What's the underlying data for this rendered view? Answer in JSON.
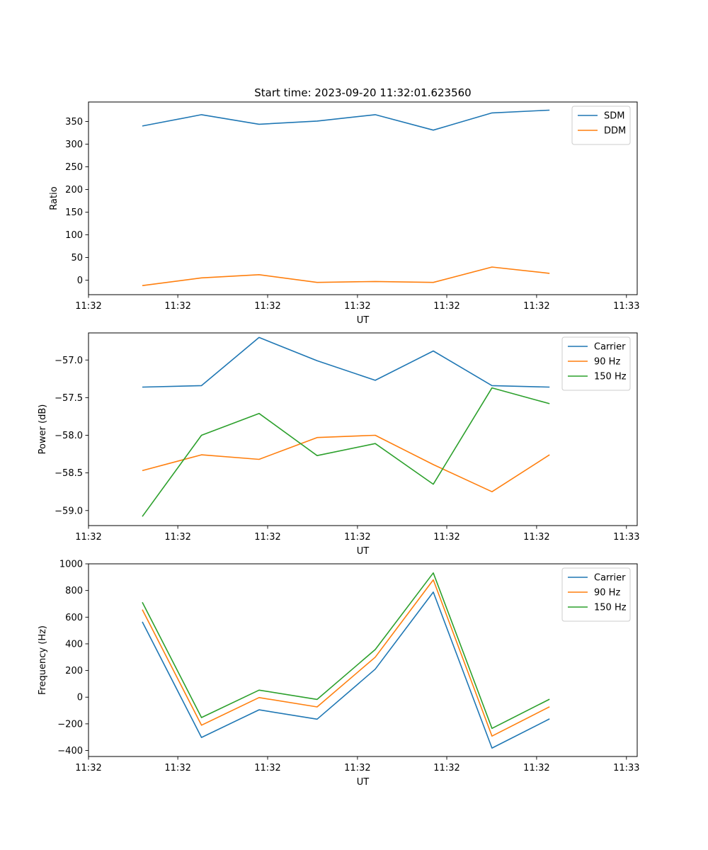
{
  "figure_title": "Start time: 2023-09-20 11:32:01.623560",
  "colors": {
    "blue": "#1f77b4",
    "orange": "#ff7f0e",
    "green": "#2ca02c"
  },
  "chart_data": [
    {
      "type": "line",
      "title": "Start time: 2023-09-20 11:32:01.623560",
      "xlabel": "UT",
      "ylabel": "Ratio",
      "xlim": [
        -1.0,
        9.2
      ],
      "ylim": [
        -32,
        393
      ],
      "x": [
        0,
        1.1,
        2.17,
        3.25,
        4.33,
        5.41,
        6.5,
        7.57
      ],
      "xticks": [
        -1.0,
        0.66,
        2.33,
        4.0,
        5.66,
        7.33,
        9.0
      ],
      "xtick_labels": [
        "11:32",
        "11:32",
        "11:32",
        "11:32",
        "11:32",
        "11:32",
        "11:33"
      ],
      "yticks": [
        0,
        50,
        100,
        150,
        200,
        250,
        300,
        350
      ],
      "ytick_labels": [
        "0",
        "50",
        "100",
        "150",
        "200",
        "250",
        "300",
        "350"
      ],
      "legend_loc": "top-right",
      "series": [
        {
          "name": "SDM",
          "color": "#1f77b4",
          "values": [
            340,
            365,
            344,
            351,
            365,
            331,
            369,
            375
          ]
        },
        {
          "name": "DDM",
          "color": "#ff7f0e",
          "values": [
            -12,
            5,
            12,
            -5,
            -3,
            -5,
            29,
            15
          ]
        }
      ]
    },
    {
      "type": "line",
      "xlabel": "UT",
      "ylabel": "Power (dB)",
      "xlim": [
        -1.0,
        9.2
      ],
      "ylim": [
        -59.2,
        -56.64
      ],
      "x": [
        0,
        1.1,
        2.17,
        3.25,
        4.33,
        5.41,
        6.5,
        7.57
      ],
      "xticks": [
        -1.0,
        0.66,
        2.33,
        4.0,
        5.66,
        7.33,
        9.0
      ],
      "xtick_labels": [
        "11:32",
        "11:32",
        "11:32",
        "11:32",
        "11:32",
        "11:32",
        "11:33"
      ],
      "yticks": [
        -59.0,
        -58.5,
        -58.0,
        -57.5,
        -57.0
      ],
      "ytick_labels": [
        "−59.0",
        "−58.5",
        "−58.0",
        "−57.5",
        "−57.0"
      ],
      "legend_loc": "top-right",
      "series": [
        {
          "name": "Carrier",
          "color": "#1f77b4",
          "values": [
            -57.36,
            -57.34,
            -56.7,
            -57.01,
            -57.27,
            -56.88,
            -57.34,
            -57.36
          ]
        },
        {
          "name": "90 Hz",
          "color": "#ff7f0e",
          "values": [
            -58.47,
            -58.26,
            -58.32,
            -58.03,
            -58.0,
            -58.39,
            -58.75,
            -58.26
          ]
        },
        {
          "name": "150 Hz",
          "color": "#2ca02c",
          "values": [
            -59.08,
            -58.0,
            -57.71,
            -58.27,
            -58.11,
            -58.65,
            -57.37,
            -57.58
          ]
        }
      ]
    },
    {
      "type": "line",
      "xlabel": "UT",
      "ylabel": "Frequency (Hz)",
      "xlim": [
        -1.0,
        9.2
      ],
      "ylim": [
        -445,
        1000
      ],
      "x": [
        0,
        1.1,
        2.17,
        3.25,
        4.33,
        5.41,
        6.5,
        7.57
      ],
      "xticks": [
        -1.0,
        0.66,
        2.33,
        4.0,
        5.66,
        7.33,
        9.0
      ],
      "xtick_labels": [
        "11:32",
        "11:32",
        "11:32",
        "11:32",
        "11:32",
        "11:32",
        "11:33"
      ],
      "yticks": [
        -400,
        -200,
        0,
        200,
        400,
        600,
        800,
        1000
      ],
      "ytick_labels": [
        "−400",
        "−200",
        "0",
        "200",
        "400",
        "600",
        "800",
        "1000"
      ],
      "legend_loc": "top-right",
      "series": [
        {
          "name": "Carrier",
          "color": "#1f77b4",
          "values": [
            565,
            -302,
            -95,
            -165,
            210,
            788,
            -382,
            -163
          ]
        },
        {
          "name": "90 Hz",
          "color": "#ff7f0e",
          "values": [
            657,
            -210,
            -3,
            -73,
            300,
            880,
            -292,
            -72
          ]
        },
        {
          "name": "150 Hz",
          "color": "#2ca02c",
          "values": [
            712,
            -153,
            53,
            -17,
            357,
            932,
            -234,
            -15
          ]
        }
      ]
    }
  ]
}
